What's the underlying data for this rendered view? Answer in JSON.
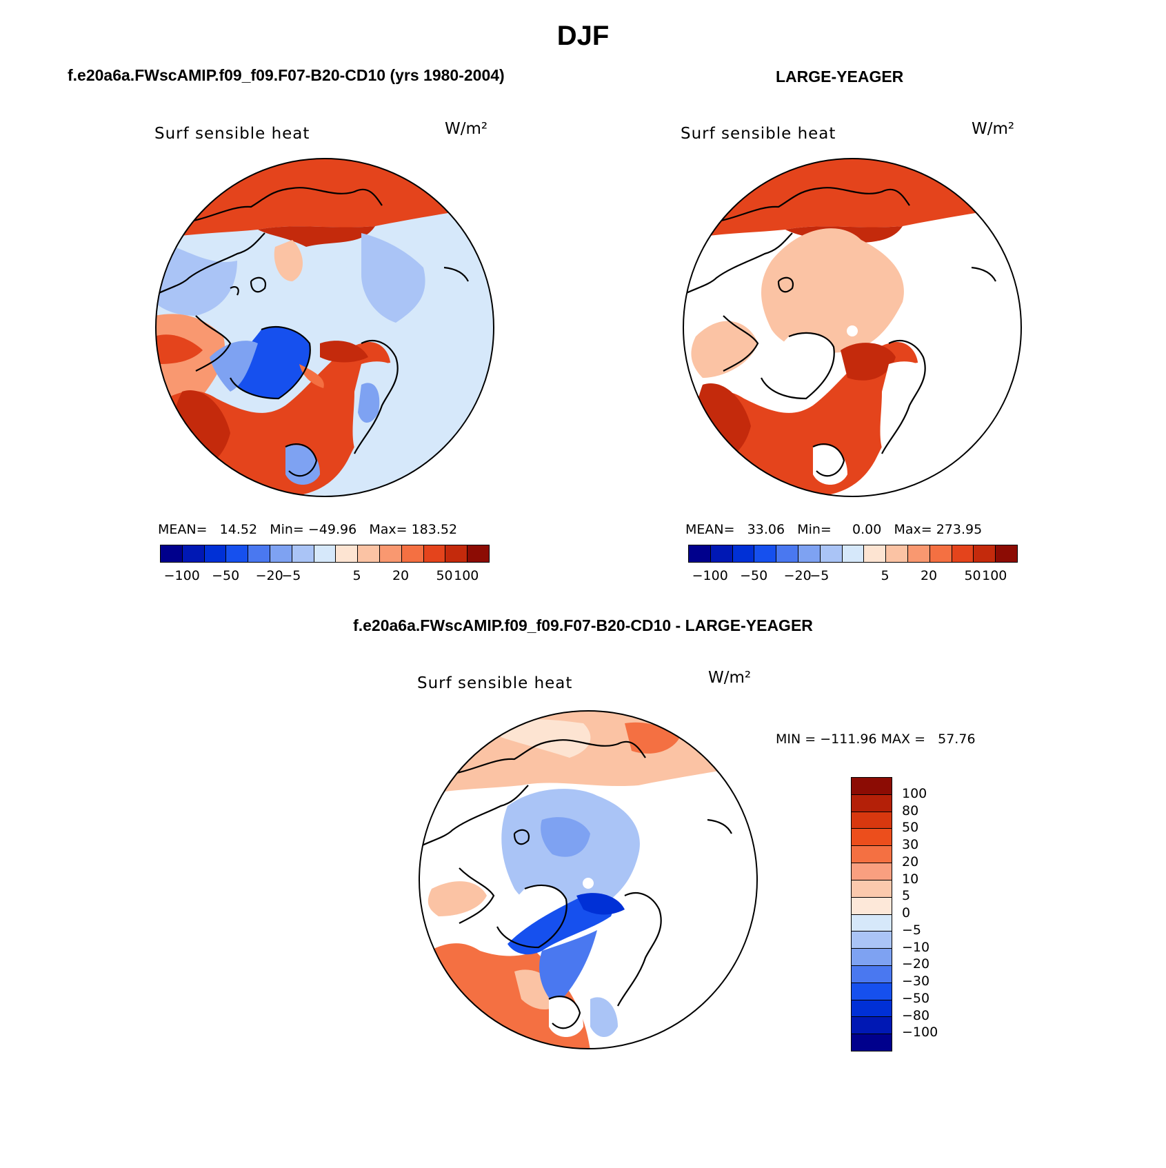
{
  "figure": {
    "title": "DJF",
    "panels": [
      {
        "id": "model",
        "case_title": "f.e20a6a.FWscAMIP.f09_f09.F07-B20-CD10 (yrs 1980-2004)",
        "variable": "Surf sensible heat",
        "units": "W/m²",
        "stats": {
          "mean_label": "MEAN=",
          "mean": "14.52",
          "min_label": "Min=",
          "min": "−49.96",
          "max_label": "Max=",
          "max": "183.52"
        }
      },
      {
        "id": "obs",
        "case_title": "LARGE-YEAGER",
        "variable": "Surf sensible heat",
        "units": "W/m²",
        "stats": {
          "mean_label": "MEAN=",
          "mean": "33.06",
          "min_label": "Min=",
          "min": "0.00",
          "max_label": "Max=",
          "max": "273.95"
        }
      },
      {
        "id": "diff",
        "case_title": "f.e20a6a.FWscAMIP.f09_f09.F07-B20-CD10 - LARGE-YEAGER",
        "variable": "Surf sensible heat",
        "units": "W/m²",
        "minmax_text": "MIN = −111.96 MAX =   57.76"
      }
    ],
    "colorbar_horizontal": {
      "colors": [
        "#00008c",
        "#0018b4",
        "#0030d6",
        "#1650ee",
        "#4a78f0",
        "#7ea2f2",
        "#aac4f6",
        "#d6e8fa",
        "#fde4d2",
        "#fbc3a4",
        "#f99870",
        "#f47042",
        "#e4441c",
        "#c42a0c",
        "#8c0c04"
      ],
      "tick_labels": [
        "−100",
        "−50",
        "−20",
        "−5",
        "5",
        "20",
        "50",
        "100"
      ]
    },
    "colorbar_vertical": {
      "colors_top_to_bottom": [
        "#8c0c04",
        "#b42008",
        "#d8380f",
        "#ec4e1c",
        "#f47042",
        "#f99f80",
        "#fbc9ad",
        "#fde8d9",
        "#d6e8fa",
        "#aac4f6",
        "#7ea2f2",
        "#4a78f0",
        "#1650ee",
        "#0030d6",
        "#0018b4",
        "#00008c"
      ],
      "tick_labels": [
        "100",
        "80",
        "50",
        "30",
        "20",
        "10",
        "5",
        "0",
        "−5",
        "−10",
        "−20",
        "−30",
        "−50",
        "−80",
        "−100"
      ]
    },
    "map_colors": {
      "red_dark": "#c42a0c",
      "red": "#e4441c",
      "orange": "#f47042",
      "salmon": "#f99870",
      "peach": "#fbc3a4",
      "cream": "#fde4d2",
      "ice": "#d6e8fa",
      "pale_blue": "#aac4f6",
      "blue": "#7ea2f2",
      "mid_blue": "#4a78f0",
      "deep_blue": "#1650ee",
      "navy": "#0030d6"
    }
  }
}
